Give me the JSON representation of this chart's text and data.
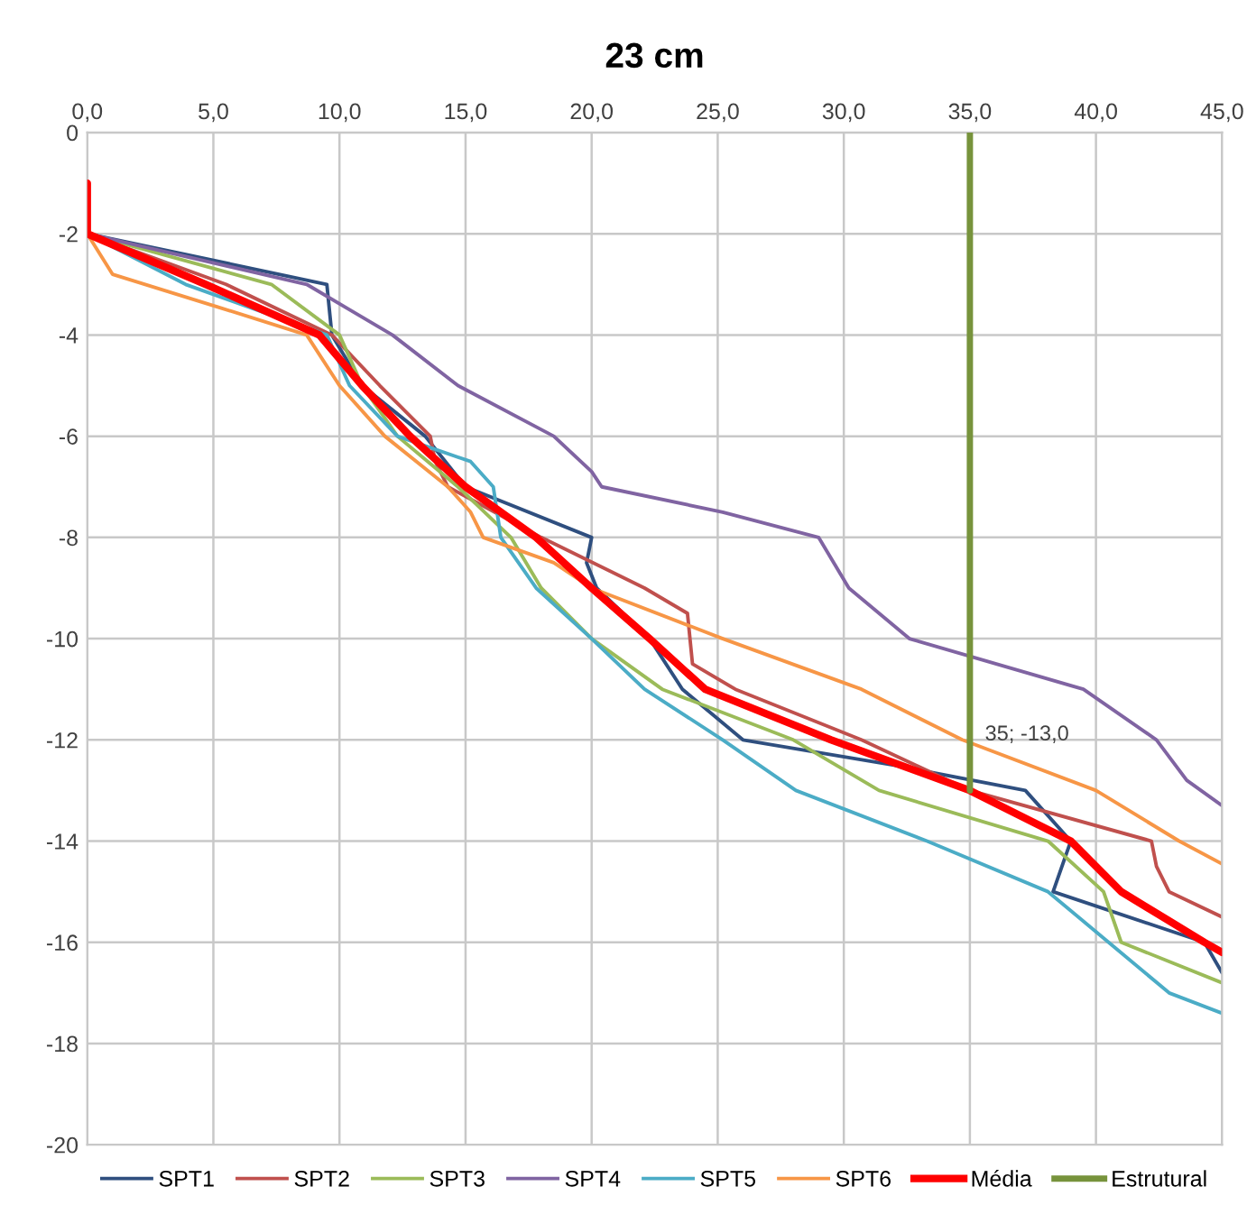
{
  "chart_data": {
    "type": "line",
    "title": "23 cm",
    "xlim": [
      0,
      45
    ],
    "ylim": [
      -20,
      0
    ],
    "xticks": [
      {
        "value": 0,
        "label": "0,0"
      },
      {
        "value": 5,
        "label": "5,0"
      },
      {
        "value": 10,
        "label": "10,0"
      },
      {
        "value": 15,
        "label": "15,0"
      },
      {
        "value": 20,
        "label": "20,0"
      },
      {
        "value": 25,
        "label": "25,0"
      },
      {
        "value": 30,
        "label": "30,0"
      },
      {
        "value": 35,
        "label": "35,0"
      },
      {
        "value": 40,
        "label": "40,0"
      },
      {
        "value": 45,
        "label": "45,0"
      }
    ],
    "yticks": [
      0,
      -2,
      -4,
      -6,
      -8,
      -10,
      -12,
      -14,
      -16,
      -18,
      -20
    ],
    "grid": true,
    "legend": "bottom",
    "annotations": [
      {
        "text": "35; -13,0",
        "x": 35,
        "y": -13
      }
    ],
    "series": [
      {
        "name": "SPT1",
        "color": "#2f4f7f",
        "x": [
          0,
          9.5,
          9.7,
          10.9,
          13.4,
          15,
          20,
          19.8,
          20.2,
          22.3,
          23.6,
          26,
          32,
          37.2,
          39,
          38.3,
          44.3,
          45
        ],
        "values": [
          -2,
          -3,
          -4,
          -5,
          -6,
          -7,
          -8,
          -8.5,
          -9,
          -10,
          -11,
          -12,
          -12.5,
          -13,
          -14,
          -15,
          -16,
          -16.6
        ]
      },
      {
        "name": "SPT2",
        "color": "#c0504d",
        "x": [
          0,
          5.5,
          9.7,
          11.6,
          13.6,
          13.8,
          14.3,
          18,
          22.1,
          23.8,
          23.9,
          24,
          25.7,
          30.7,
          35,
          42.2,
          42.4,
          42.9,
          45
        ],
        "values": [
          -2,
          -3,
          -4,
          -5,
          -6,
          -6.5,
          -7,
          -8,
          -9,
          -9.5,
          -10,
          -10.5,
          -11,
          -12,
          -13,
          -14,
          -14.5,
          -15,
          -15.5
        ]
      },
      {
        "name": "SPT3",
        "color": "#9bbb59",
        "x": [
          0,
          7.3,
          10,
          10.9,
          12.3,
          14.7,
          16.8,
          18,
          20,
          22.8,
          28,
          31.4,
          38.1,
          40.3,
          41,
          45
        ],
        "values": [
          -2,
          -3,
          -4,
          -5,
          -6,
          -7,
          -8,
          -9,
          -10,
          -11,
          -12,
          -13,
          -14,
          -15,
          -16,
          -16.8
        ]
      },
      {
        "name": "SPT4",
        "color": "#8064a2",
        "x": [
          0,
          8.7,
          10.4,
          12.1,
          14.7,
          18.5,
          20,
          20.4,
          25.2,
          29,
          30.2,
          32.6,
          39.5,
          42.4,
          43.6,
          45
        ],
        "values": [
          -2,
          -3,
          -3.5,
          -4,
          -5,
          -6,
          -6.7,
          -7,
          -7.5,
          -8,
          -9,
          -10,
          -11,
          -12,
          -12.8,
          -13.3
        ]
      },
      {
        "name": "SPT5",
        "color": "#4bacc6",
        "x": [
          0,
          3.9,
          9.5,
          10.4,
          12.3,
          15.2,
          16.1,
          16.4,
          17.8,
          20,
          22.1,
          25.2,
          28.1,
          33.3,
          38.1,
          40.5,
          42.9,
          45
        ],
        "values": [
          -2,
          -3,
          -4,
          -5,
          -6,
          -6.5,
          -7,
          -8,
          -9,
          -10,
          -11,
          -12,
          -13,
          -14,
          -15,
          -16,
          -17,
          -17.4
        ]
      },
      {
        "name": "SPT6",
        "color": "#f79646",
        "x": [
          0,
          1,
          5.2,
          8.7,
          10,
          11.8,
          14.3,
          15.2,
          15.7,
          18.5,
          20,
          25.2,
          30.7,
          34.7,
          40,
          43.3,
          45
        ],
        "values": [
          -2,
          -2.8,
          -3.45,
          -4,
          -5,
          -6,
          -7,
          -7.5,
          -8,
          -8.5,
          -9,
          -10,
          -11,
          -12,
          -13,
          -14,
          -14.45
        ]
      },
      {
        "name": "Média",
        "color": "#ff0000",
        "x": [
          0,
          0,
          4.7,
          9.2,
          10.9,
          12.8,
          15,
          17.8,
          20,
          22.3,
          24.5,
          29.5,
          35,
          39,
          41,
          44.3,
          45
        ],
        "values": [
          -1,
          -2,
          -3,
          -4,
          -5,
          -6,
          -7,
          -8,
          -9,
          -10,
          -11,
          -12,
          -13,
          -14,
          -15,
          -16,
          -16.2
        ]
      },
      {
        "name": "Estrutural",
        "color": "#77933c",
        "x": [
          35,
          35
        ],
        "values": [
          0,
          -13
        ]
      }
    ]
  }
}
